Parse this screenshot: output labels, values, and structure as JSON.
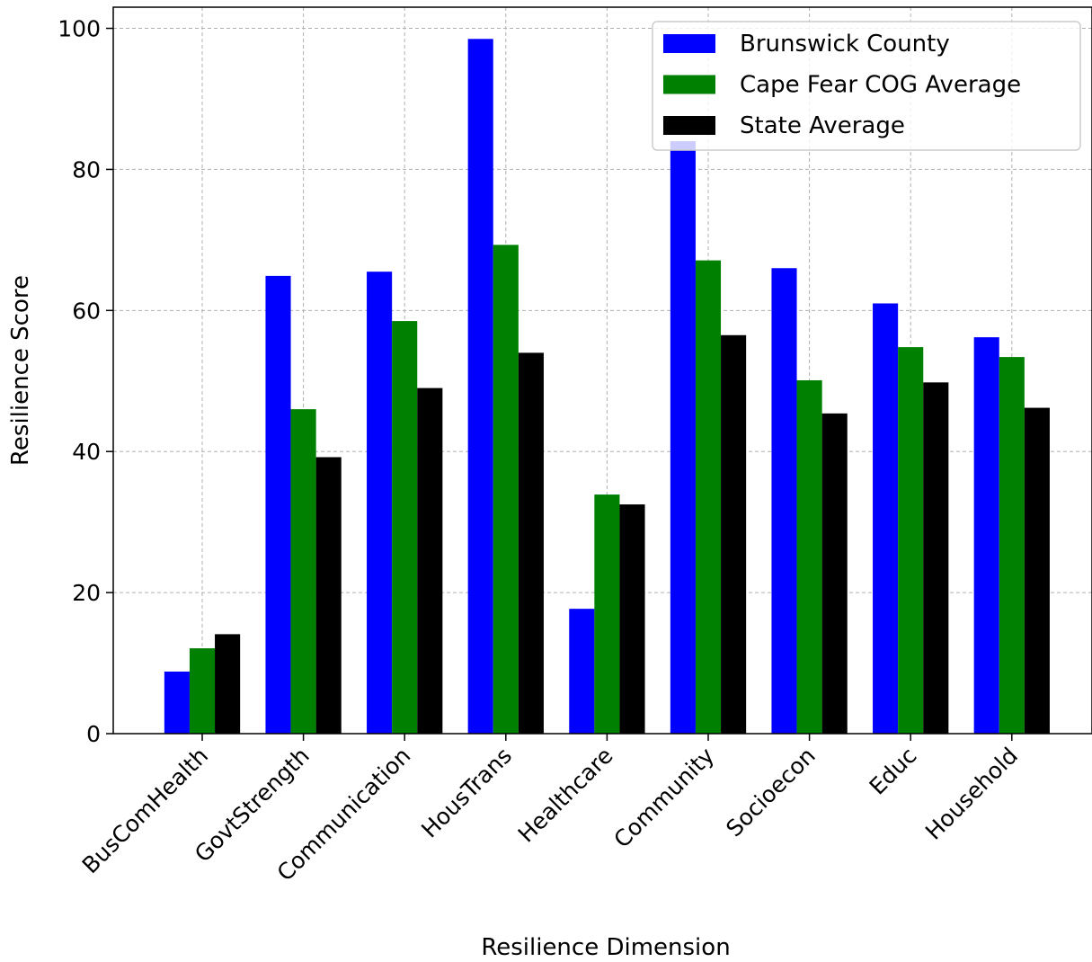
{
  "chart_data": {
    "type": "bar",
    "title": "",
    "xlabel": "Resilience Dimension",
    "ylabel": "Resilience Score",
    "ylim": [
      0,
      103
    ],
    "yticks": [
      0,
      20,
      40,
      60,
      80,
      100
    ],
    "grid": true,
    "legend_position": "top-right",
    "categories": [
      "BusComHealth",
      "GovtStrength",
      "Communication",
      "HousTrans",
      "Healthcare",
      "Community",
      "Socioecon",
      "Educ",
      "Household"
    ],
    "series": [
      {
        "name": "Brunswick County",
        "color": "#0000ff",
        "values": [
          8.8,
          64.9,
          65.5,
          98.5,
          17.7,
          84.0,
          66.0,
          61.0,
          56.2
        ]
      },
      {
        "name": "Cape Fear COG Average",
        "color": "#008000",
        "values": [
          12.1,
          46.0,
          58.5,
          69.3,
          33.9,
          67.1,
          50.1,
          54.8,
          53.4
        ]
      },
      {
        "name": "State Average",
        "color": "#000000",
        "values": [
          14.1,
          39.2,
          49.0,
          54.0,
          32.5,
          56.5,
          45.4,
          49.8,
          46.2
        ]
      }
    ]
  }
}
